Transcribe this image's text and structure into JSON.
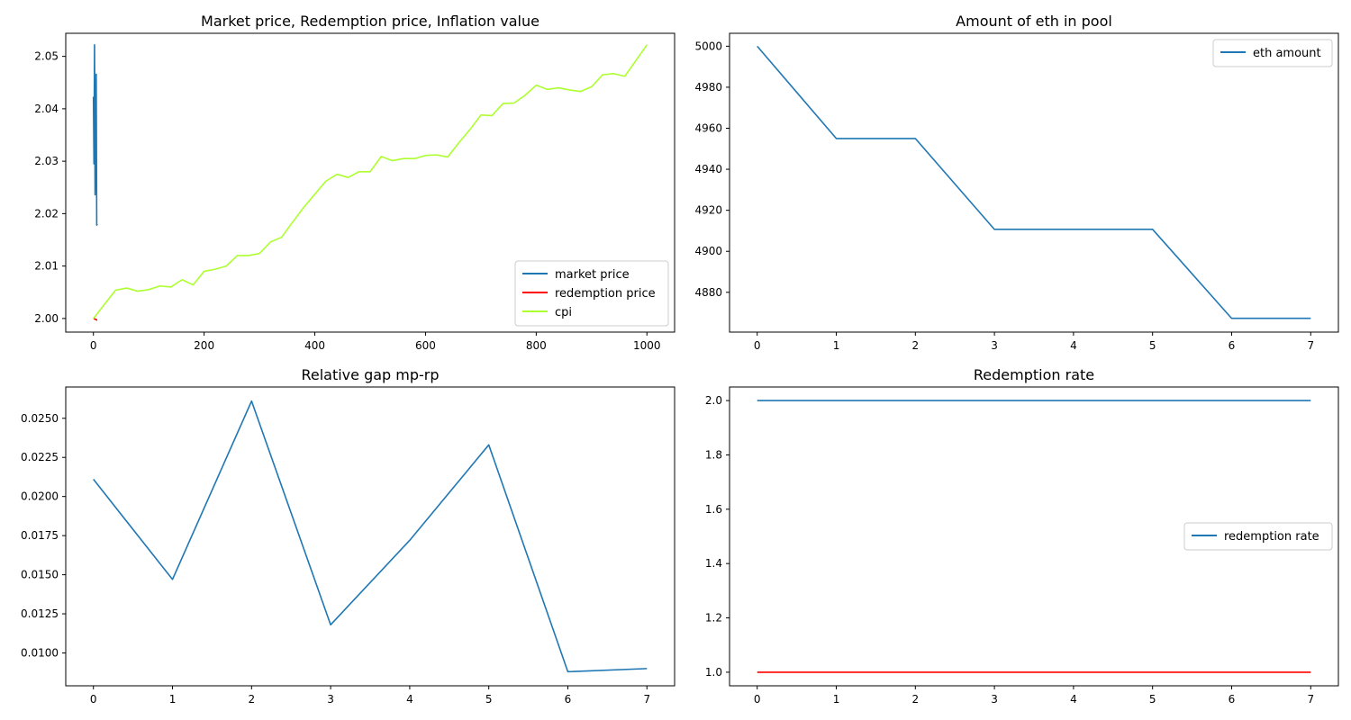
{
  "chart_data": [
    {
      "type": "line",
      "title": "Market price, Redemption price, Inflation value",
      "xlabel": "",
      "ylabel": "",
      "xlim": [
        -50,
        1050
      ],
      "ylim": [
        1.9974,
        2.0544
      ],
      "xticks": [
        0,
        200,
        400,
        600,
        800,
        1000
      ],
      "yticks": [
        2.0,
        2.01,
        2.02,
        2.03,
        2.04,
        2.05
      ],
      "ytick_labels": [
        "2.00",
        "2.01",
        "2.02",
        "2.03",
        "2.04",
        "2.05"
      ],
      "grid": false,
      "legend": "lower-right",
      "series": [
        {
          "name": "market price",
          "color": "#1f77b4",
          "x": [
            0,
            1,
            2,
            3,
            4,
            5,
            6,
            7
          ],
          "y": [
            2.0423,
            2.0295,
            2.0522,
            2.0236,
            2.0346,
            2.0466,
            2.0178,
            2.018
          ]
        },
        {
          "name": "redemption price",
          "color": "#ff0000",
          "x": [
            0,
            1,
            2,
            3,
            4,
            5,
            6,
            7
          ],
          "y": [
            2.0,
            2.0,
            1.9999,
            1.9999,
            1.9998,
            1.9998,
            1.9997,
            1.9997
          ]
        },
        {
          "name": "cpi",
          "color": "#adff2f",
          "x": [
            0,
            20,
            40,
            60,
            80,
            100,
            120,
            140,
            160,
            180,
            200,
            220,
            240,
            260,
            280,
            300,
            320,
            340,
            360,
            380,
            400,
            420,
            440,
            460,
            480,
            500,
            520,
            540,
            560,
            580,
            600,
            620,
            640,
            660,
            680,
            700,
            720,
            740,
            760,
            780,
            800,
            820,
            840,
            860,
            880,
            900,
            920,
            940,
            960,
            980,
            1000
          ],
          "y": [
            2.0,
            2.0027,
            2.0054,
            2.0058,
            2.0052,
            2.0055,
            2.0062,
            2.006,
            2.0074,
            2.0064,
            2.009,
            2.0094,
            2.01,
            2.012,
            2.012,
            2.0124,
            2.0146,
            2.0155,
            2.0184,
            2.0212,
            2.0237,
            2.0262,
            2.0275,
            2.0269,
            2.028,
            2.028,
            2.0309,
            2.0301,
            2.0305,
            2.0305,
            2.0311,
            2.0312,
            2.0308,
            2.0335,
            2.036,
            2.0388,
            2.0387,
            2.041,
            2.0411,
            2.0426,
            2.0445,
            2.0437,
            2.044,
            2.0436,
            2.0433,
            2.0442,
            2.0465,
            2.0467,
            2.0462,
            2.0492,
            2.0522
          ]
        }
      ]
    },
    {
      "type": "line",
      "title": "Amount of eth in pool",
      "xlabel": "",
      "ylabel": "",
      "xlim": [
        -0.35,
        7.35
      ],
      "ylim": [
        4860.6,
        5006.3
      ],
      "xticks": [
        0,
        1,
        2,
        3,
        4,
        5,
        6,
        7
      ],
      "yticks": [
        4880,
        4900,
        4920,
        4940,
        4960,
        4980,
        5000
      ],
      "ytick_labels": [
        "4880",
        "4900",
        "4920",
        "4940",
        "4960",
        "4980",
        "5000"
      ],
      "grid": false,
      "legend": "upper-right",
      "series": [
        {
          "name": "eth amount",
          "color": "#1f77b4",
          "x": [
            0,
            1,
            2,
            3,
            4,
            5,
            6,
            7
          ],
          "y": [
            5000,
            4955,
            4955,
            4910.7,
            4910.7,
            4910.7,
            4867.3,
            4867.3
          ]
        }
      ]
    },
    {
      "type": "line",
      "title": "Relative gap mp-rp",
      "xlabel": "",
      "ylabel": "",
      "xlim": [
        -0.35,
        7.35
      ],
      "ylim": [
        0.0079,
        0.027
      ],
      "xticks": [
        0,
        1,
        2,
        3,
        4,
        5,
        6,
        7
      ],
      "yticks": [
        0.01,
        0.0125,
        0.015,
        0.0175,
        0.02,
        0.0225,
        0.025
      ],
      "ytick_labels": [
        "0.0100",
        "0.0125",
        "0.0150",
        "0.0175",
        "0.0200",
        "0.0225",
        "0.0250"
      ],
      "grid": false,
      "legend": "none",
      "series": [
        {
          "color": "#1f77b4",
          "x": [
            0,
            1,
            2,
            3,
            4,
            5,
            6,
            7
          ],
          "y": [
            0.0211,
            0.0147,
            0.0261,
            0.0118,
            0.0172,
            0.0233,
            0.0088,
            0.009
          ]
        }
      ]
    },
    {
      "type": "line",
      "title": "Redemption rate",
      "xlabel": "",
      "ylabel": "",
      "xlim": [
        -0.35,
        7.35
      ],
      "ylim": [
        0.95,
        2.05
      ],
      "xticks": [
        0,
        1,
        2,
        3,
        4,
        5,
        6,
        7
      ],
      "yticks": [
        1.0,
        1.2,
        1.4,
        1.6,
        1.8,
        2.0
      ],
      "ytick_labels": [
        "1.0",
        "1.2",
        "1.4",
        "1.6",
        "1.8",
        "2.0"
      ],
      "grid": false,
      "legend": "center-right",
      "series": [
        {
          "name": "redemption rate",
          "color": "#1f77b4",
          "x": [
            0,
            1,
            2,
            3,
            4,
            5,
            6,
            7
          ],
          "y": [
            2.0,
            2.0,
            2.0,
            2.0,
            2.0,
            2.0,
            2.0,
            2.0
          ]
        },
        {
          "color": "#ff0000",
          "x": [
            0,
            1,
            2,
            3,
            4,
            5,
            6,
            7
          ],
          "y": [
            1.0,
            1.0,
            1.0,
            1.0,
            1.0,
            1.0,
            1.0,
            1.0
          ]
        }
      ]
    }
  ]
}
